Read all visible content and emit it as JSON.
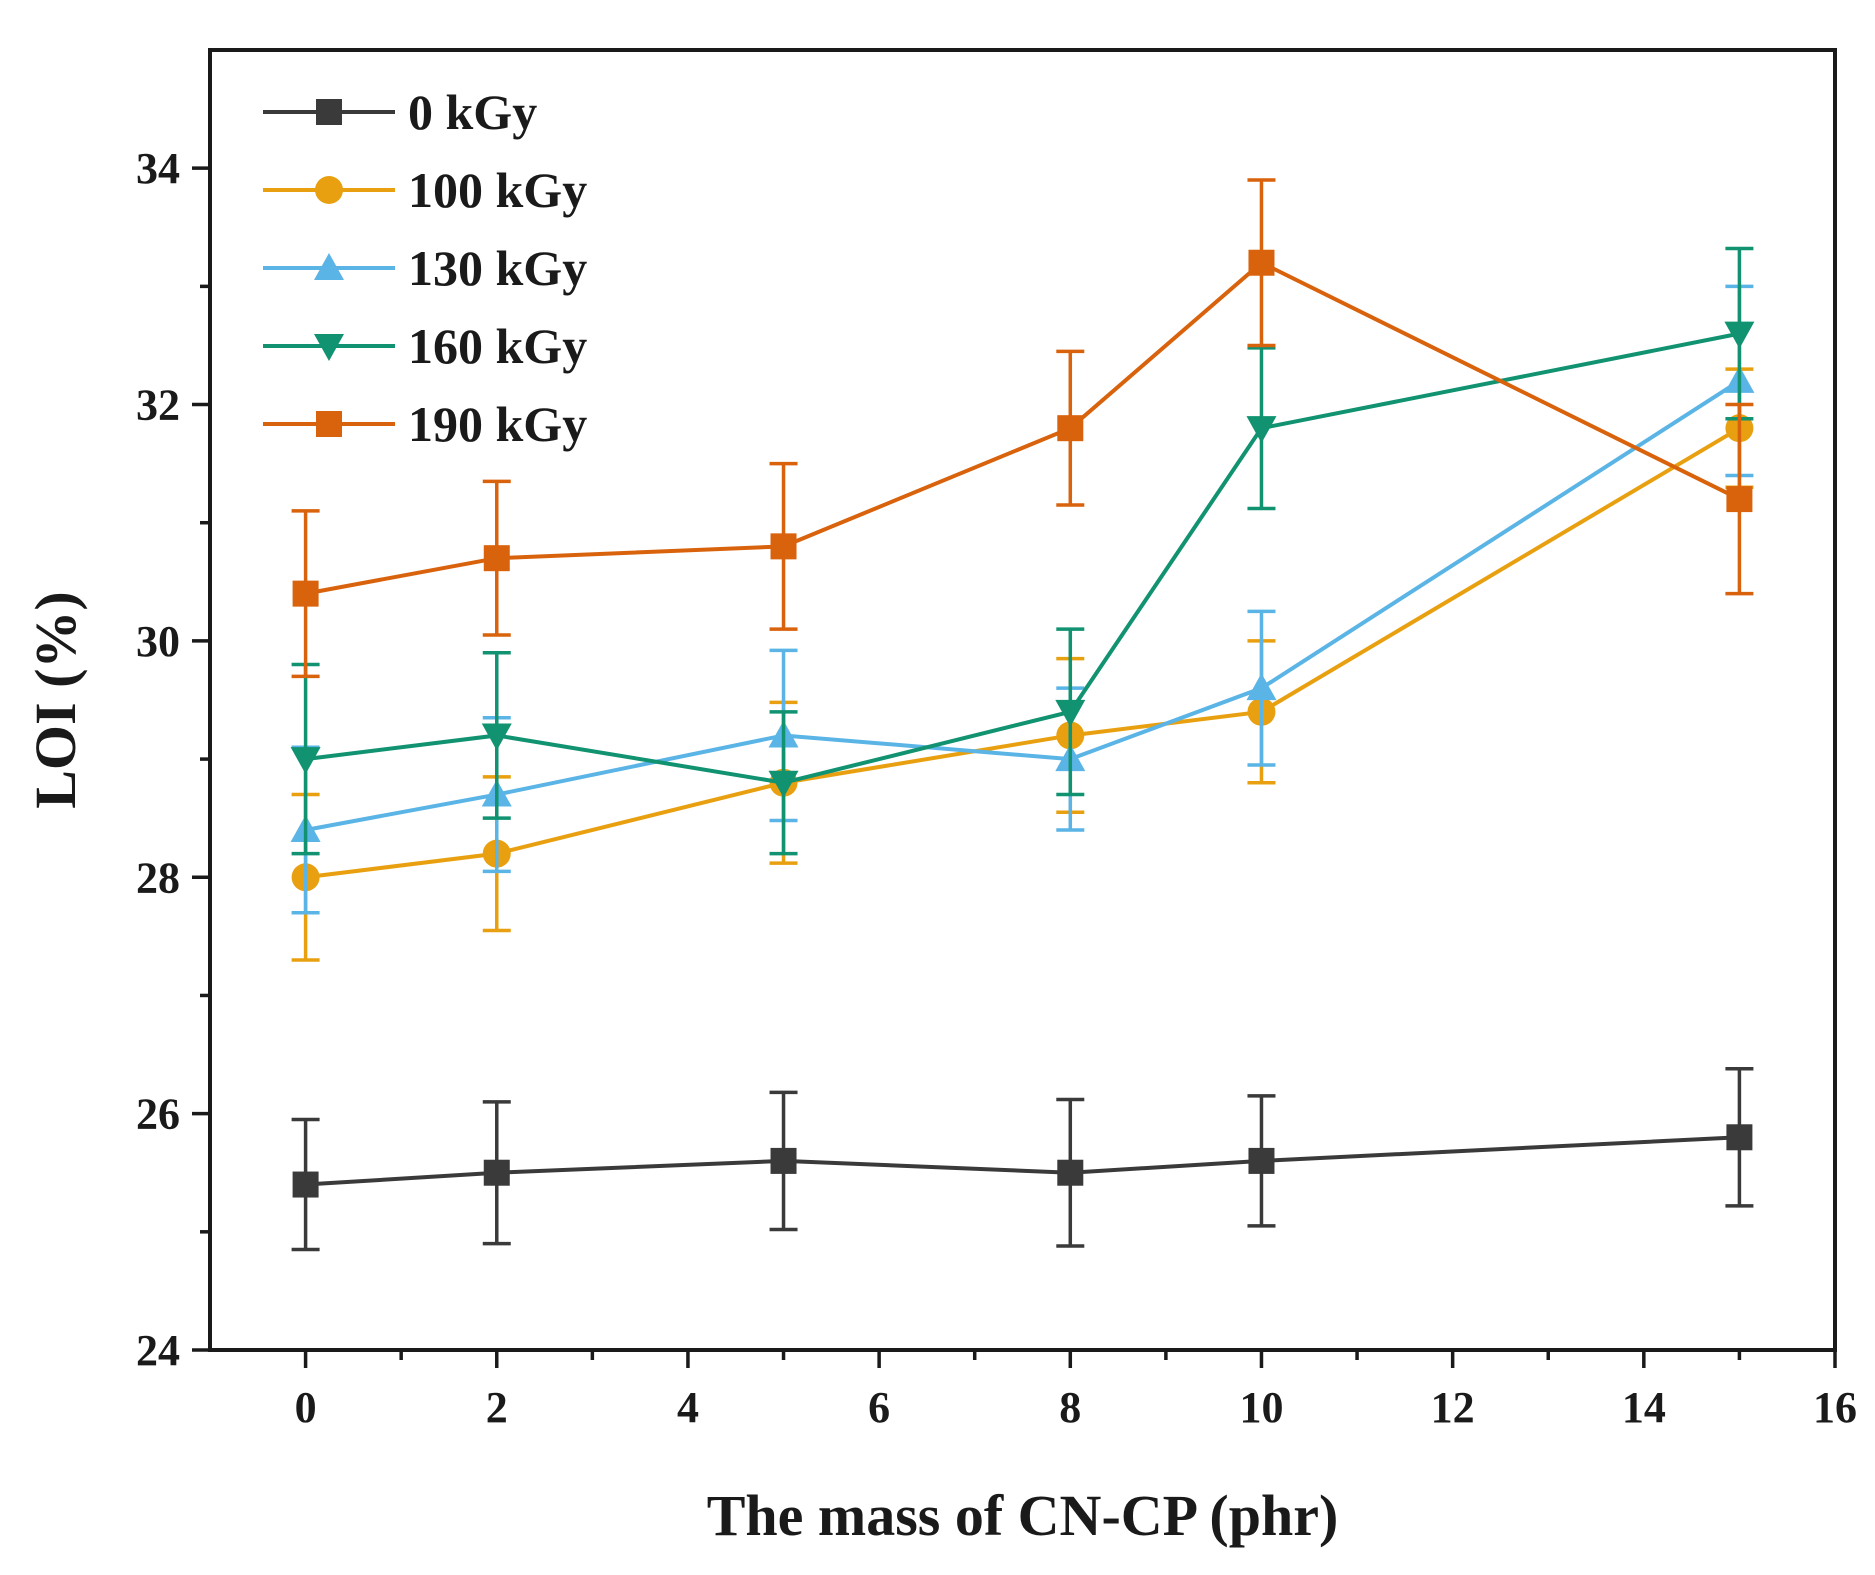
{
  "chart_data": {
    "type": "line",
    "xlabel": "The mass of CN-CP (phr)",
    "ylabel": "LOI (%)",
    "xlim": [
      -1,
      16
    ],
    "ylim": [
      24,
      35
    ],
    "x_ticks": [
      0,
      2,
      4,
      6,
      8,
      10,
      12,
      14,
      16
    ],
    "y_ticks": [
      24,
      26,
      28,
      30,
      32,
      34
    ],
    "x_tick_labels": [
      "0",
      "2",
      "4",
      "6",
      "8",
      "10",
      "12",
      "14",
      "16"
    ],
    "y_tick_labels": [
      "24",
      "26",
      "28",
      "30",
      "32",
      "34"
    ],
    "legend_position": "top-left",
    "grid": false,
    "x": [
      0,
      2,
      5,
      8,
      10,
      15
    ],
    "series": [
      {
        "name": "0 kGy",
        "color": "#3a3a3a",
        "marker": "square",
        "values": [
          25.4,
          25.5,
          25.6,
          25.5,
          25.6,
          25.8
        ],
        "errors": [
          0.55,
          0.6,
          0.58,
          0.62,
          0.55,
          0.58
        ]
      },
      {
        "name": "100 kGy",
        "color": "#e8a010",
        "marker": "circle",
        "values": [
          28.0,
          28.2,
          28.8,
          29.2,
          29.4,
          31.8
        ],
        "errors": [
          0.7,
          0.65,
          0.68,
          0.65,
          0.6,
          0.5
        ]
      },
      {
        "name": "130 kGy",
        "color": "#5ab4e6",
        "marker": "triangle-up",
        "values": [
          28.4,
          28.7,
          29.2,
          29.0,
          29.6,
          32.2
        ],
        "errors": [
          0.7,
          0.65,
          0.72,
          0.6,
          0.65,
          0.8
        ]
      },
      {
        "name": "160 kGy",
        "color": "#119270",
        "marker": "triangle-down",
        "values": [
          29.0,
          29.2,
          28.8,
          29.4,
          31.8,
          32.6
        ],
        "errors": [
          0.8,
          0.7,
          0.6,
          0.7,
          0.68,
          0.72
        ]
      },
      {
        "name": "190 kGy",
        "color": "#d9620c",
        "marker": "square",
        "values": [
          30.4,
          30.7,
          30.8,
          31.8,
          33.2,
          31.2
        ],
        "errors": [
          0.7,
          0.65,
          0.7,
          0.65,
          0.7,
          0.8
        ]
      }
    ]
  }
}
